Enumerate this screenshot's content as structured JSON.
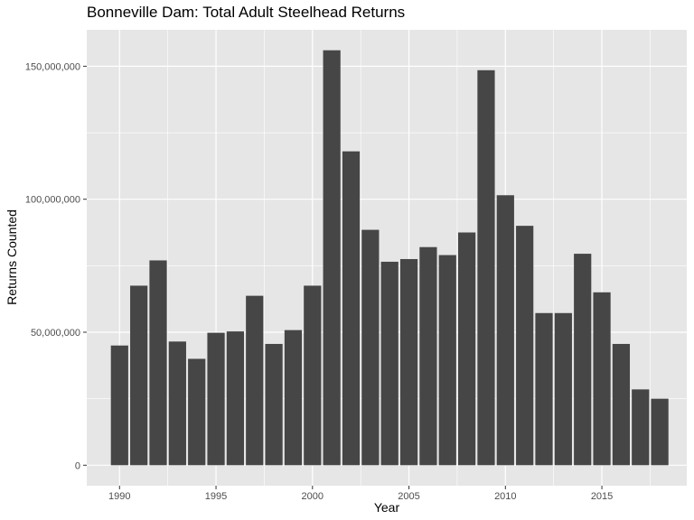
{
  "chart_data": {
    "type": "bar",
    "title": "Bonneville Dam: Total Adult Steelhead Returns",
    "xlabel": "Year",
    "ylabel": "Returns Counted",
    "x": [
      1990,
      1991,
      1992,
      1993,
      1994,
      1995,
      1996,
      1997,
      1998,
      1999,
      2000,
      2001,
      2002,
      2003,
      2004,
      2005,
      2006,
      2007,
      2008,
      2009,
      2010,
      2011,
      2012,
      2013,
      2014,
      2015,
      2016,
      2017,
      2018
    ],
    "values": [
      45000000,
      67500000,
      77000000,
      46500000,
      40000000,
      49800000,
      50300000,
      63700000,
      45600000,
      50800000,
      67500000,
      156000000,
      118000000,
      88500000,
      76500000,
      77500000,
      82000000,
      79000000,
      87500000,
      148500000,
      101500000,
      90000000,
      57200000,
      57200000,
      79500000,
      65000000,
      45600000,
      28500000,
      25000000
    ],
    "xlim": [
      1988.3,
      2019.4
    ],
    "ylim": [
      -7700000,
      163700000
    ],
    "x_ticks": [
      1990,
      1995,
      2000,
      2005,
      2010,
      2015
    ],
    "x_tick_labels": [
      "1990",
      "1995",
      "2000",
      "2005",
      "2010",
      "2015"
    ],
    "y_ticks": [
      0,
      50000000,
      100000000,
      150000000
    ],
    "y_tick_labels": [
      "0",
      "50,000,000",
      "100,000,000",
      "150,000,000"
    ],
    "bar_color": "#464646",
    "panel_background": "#e6e6e6",
    "grid_color": "#ffffff",
    "grid": true
  }
}
